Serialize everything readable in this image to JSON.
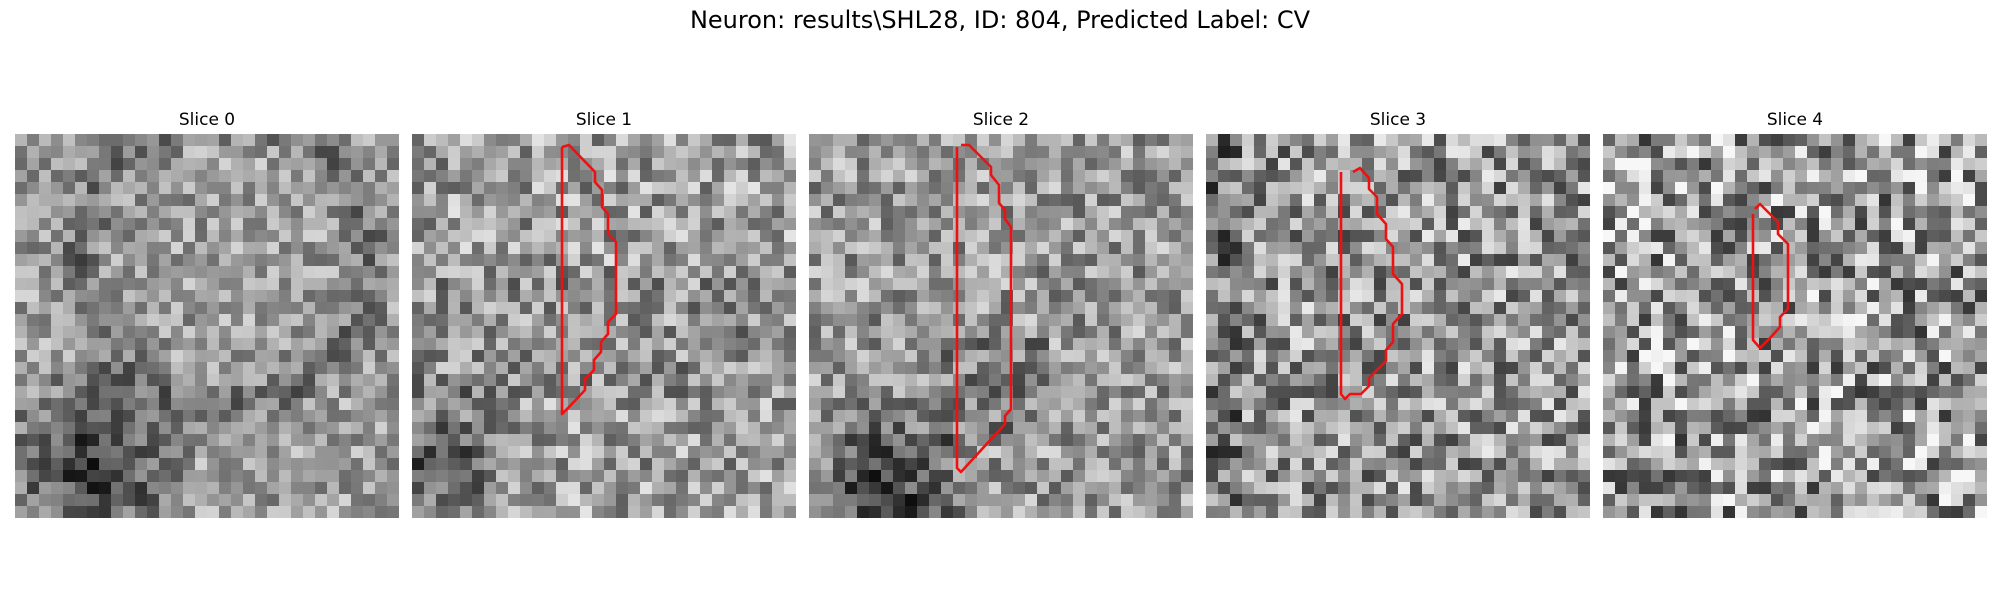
{
  "figure": {
    "title": "Neuron: results\\SHL28, ID: 804, Predicted Label: CV"
  },
  "panels": [
    {
      "title": "Slice 0",
      "has_contour": false
    },
    {
      "title": "Slice 1",
      "has_contour": true
    },
    {
      "title": "Slice 2",
      "has_contour": true
    },
    {
      "title": "Slice 3",
      "has_contour": true
    },
    {
      "title": "Slice 4",
      "has_contour": true
    }
  ],
  "colors": {
    "contour": "#ee1111",
    "background": "#ffffff"
  }
}
